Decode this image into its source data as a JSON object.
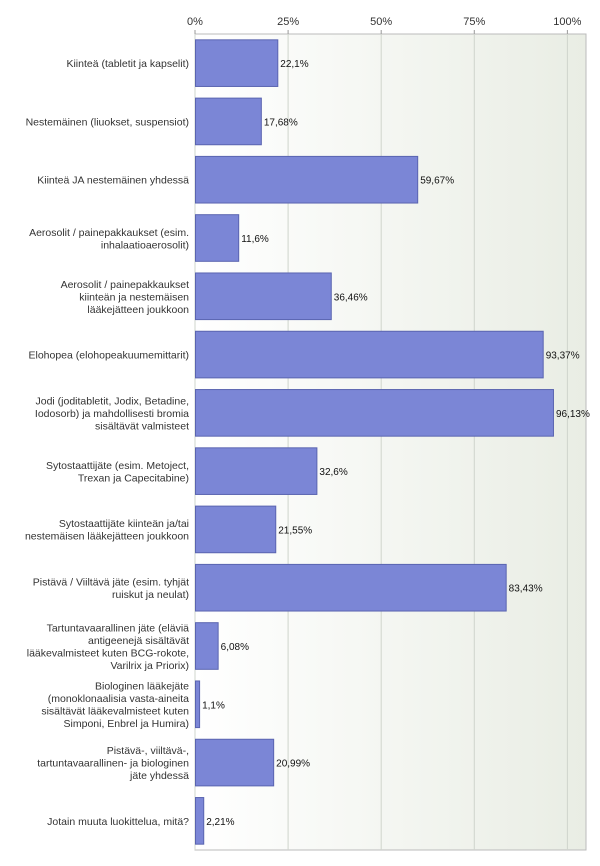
{
  "chart_data": {
    "type": "bar",
    "orientation": "horizontal",
    "xlim": [
      0,
      105
    ],
    "ticks": [
      {
        "value": 0,
        "label": "0%"
      },
      {
        "value": 25,
        "label": "25%"
      },
      {
        "value": 50,
        "label": "50%"
      },
      {
        "value": 75,
        "label": "75%"
      },
      {
        "value": 100,
        "label": "100%"
      }
    ],
    "grid": true,
    "categories": [
      [
        "Kiinteä (tabletit ja kapselit)"
      ],
      [
        "Nestemäinen (liuokset, suspensiot)"
      ],
      [
        "Kiinteä JA nestemäinen yhdessä"
      ],
      [
        "Aerosolit / painepakkaukset (esim.",
        "inhalaatioaerosolit)"
      ],
      [
        "Aerosolit / painepakkaukset",
        "kiinteän ja nestemäisen",
        "lääkejätteen joukkoon"
      ],
      [
        "Elohopea (elohopeakuumemittarit)"
      ],
      [
        "Jodi (joditabletit, Jodix, Betadine,",
        "Iodosorb) ja mahdollisesti bromia",
        "sisältävät valmisteet"
      ],
      [
        "Sytostaattijäte (esim. Metoject,",
        "Trexan ja Capecitabine)"
      ],
      [
        "Sytostaattijäte kiinteän ja/tai",
        "nestemäisen lääkejätteen joukkoon"
      ],
      [
        "Pistävä / Viiltävä jäte (esim. tyhjät",
        "ruiskut ja neulat)"
      ],
      [
        "Tartuntavaarallinen jäte (eläviä",
        "antigeenejä sisältävät",
        "lääkevalmisteet kuten BCG-rokote,",
        "Varilrix ja Priorix)"
      ],
      [
        "Biologinen lääkejäte",
        "(monoklonaalisia vasta-aineita",
        "sisältävät lääkevalmisteet kuten",
        "Simponi, Enbrel ja Humira)"
      ],
      [
        "Pistävä-, viiltävä-,",
        "tartuntavaarallinen- ja biologinen",
        "jäte yhdessä"
      ],
      [
        "Jotain muuta luokittelua, mitä?"
      ]
    ],
    "values": [
      22.1,
      17.68,
      59.67,
      11.6,
      36.46,
      93.37,
      96.13,
      32.6,
      21.55,
      83.43,
      6.08,
      1.1,
      20.99,
      2.21
    ],
    "value_labels": [
      "22,1%",
      "17,68%",
      "59,67%",
      "11,6%",
      "36,46%",
      "93,37%",
      "96,13%",
      "32,6%",
      "21,55%",
      "83,43%",
      "6,08%",
      "1,1%",
      "20,99%",
      "2,21%"
    ],
    "colors": {
      "bar": "#7b86d6",
      "bar_border": "#5a64b0",
      "plot_bg": "#eef1ea",
      "grid": "#cfd4cc",
      "axis": "#999999"
    }
  }
}
